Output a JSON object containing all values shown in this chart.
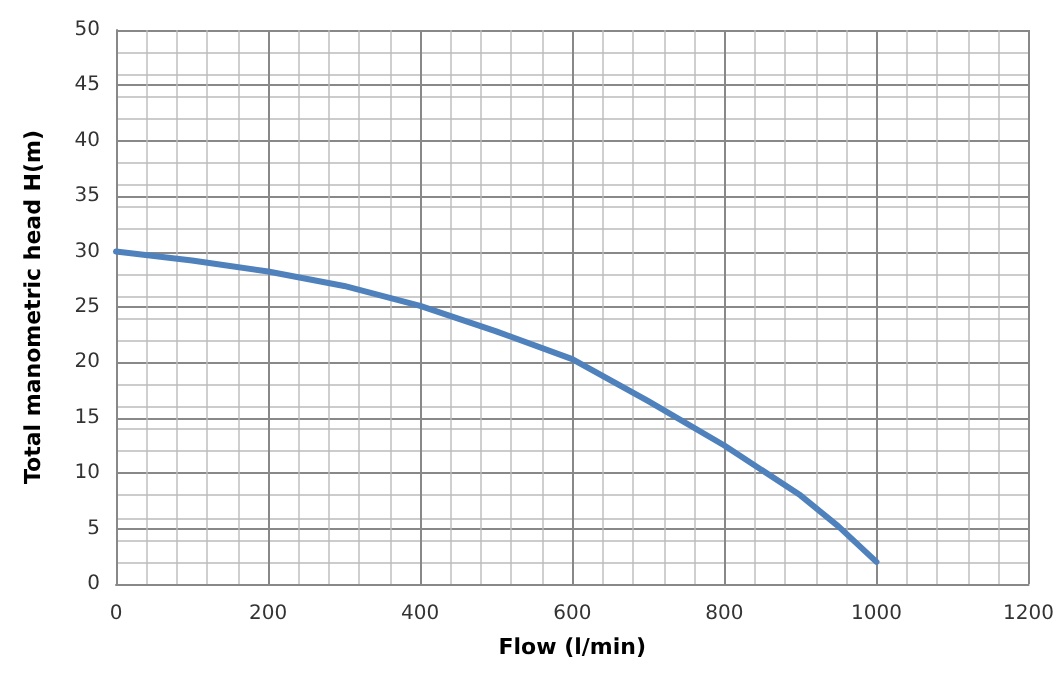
{
  "chart_data": {
    "type": "line",
    "xlabel": "Flow (l/min)",
    "ylabel": "Total manometric head H(m)",
    "x": [
      0,
      100,
      200,
      300,
      400,
      500,
      600,
      700,
      800,
      900,
      950,
      1000
    ],
    "series": [
      {
        "color": "#4f81bd",
        "values": [
          30,
          29.2,
          28.2,
          26.9,
          25.1,
          22.8,
          20.3,
          16.5,
          12.5,
          8,
          5.2,
          2
        ]
      }
    ],
    "xlim": [
      0,
      1200
    ],
    "xticks": [
      0,
      200,
      400,
      600,
      800,
      1000,
      1200
    ],
    "ylim": [
      0,
      50
    ],
    "yticks": [
      0,
      5,
      10,
      15,
      20,
      25,
      30,
      35,
      40,
      45,
      50
    ],
    "grid": true,
    "marker": "none",
    "line_style": "solid"
  }
}
